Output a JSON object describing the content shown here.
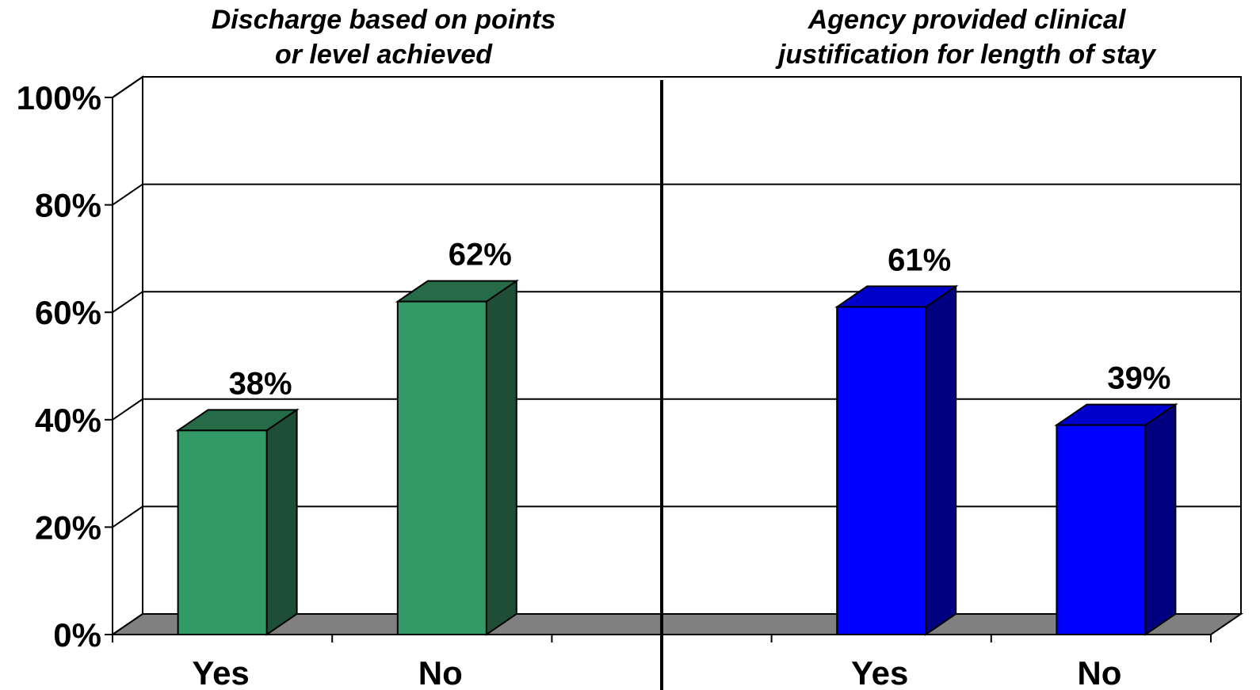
{
  "chart_data": {
    "type": "bar",
    "y_tick_labels": [
      "0%",
      "20%",
      "40%",
      "60%",
      "80%",
      "100%"
    ],
    "ylim": [
      0,
      100
    ],
    "grid": true,
    "panels": [
      {
        "title_lines": [
          "Discharge based on points",
          "or level achieved"
        ],
        "categories": [
          "Yes",
          "No"
        ],
        "values": [
          38,
          62
        ],
        "value_labels": [
          "38%",
          "62%"
        ],
        "colors": {
          "front": "#339966",
          "side": "#1e4f36",
          "top": "#256b48"
        }
      },
      {
        "title_lines": [
          "Agency provided clinical",
          "justification for length of stay"
        ],
        "categories": [
          "Yes",
          "No"
        ],
        "values": [
          61,
          39
        ],
        "value_labels": [
          "61%",
          "39%"
        ],
        "colors": {
          "front": "#0000ff",
          "side": "#000080",
          "top": "#0000cc"
        }
      }
    ],
    "floor_color": "#808080"
  }
}
